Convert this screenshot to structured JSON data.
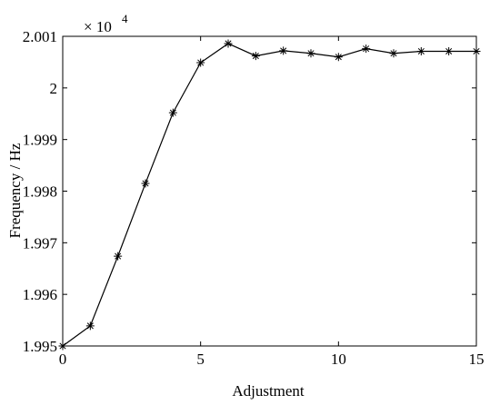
{
  "chart_data": {
    "type": "line",
    "x_label": "Adjustment",
    "y_label": "Frequency / Hz",
    "multiplier": {
      "text": "× 10",
      "exponent": "4"
    },
    "x": [
      0,
      1,
      2,
      3,
      4,
      5,
      6,
      7,
      8,
      9,
      10,
      11,
      12,
      13,
      14,
      15
    ],
    "series": [
      {
        "color": "#000000",
        "marker": "*",
        "values": [
          1.995,
          1.99539,
          1.99674,
          1.99815,
          1.99952,
          2.00049,
          2.00086,
          2.00062,
          2.00072,
          2.00067,
          2.0006,
          2.00076,
          2.00067,
          2.00071,
          2.00071,
          2.00071
        ]
      }
    ],
    "xlim": [
      0,
      15
    ],
    "xticks": [
      0,
      5,
      10,
      15
    ],
    "ylim": [
      1.995,
      2.001
    ],
    "yticks": [
      1.995,
      1.996,
      1.997,
      1.998,
      1.999,
      2,
      2.001
    ],
    "grid": false
  }
}
